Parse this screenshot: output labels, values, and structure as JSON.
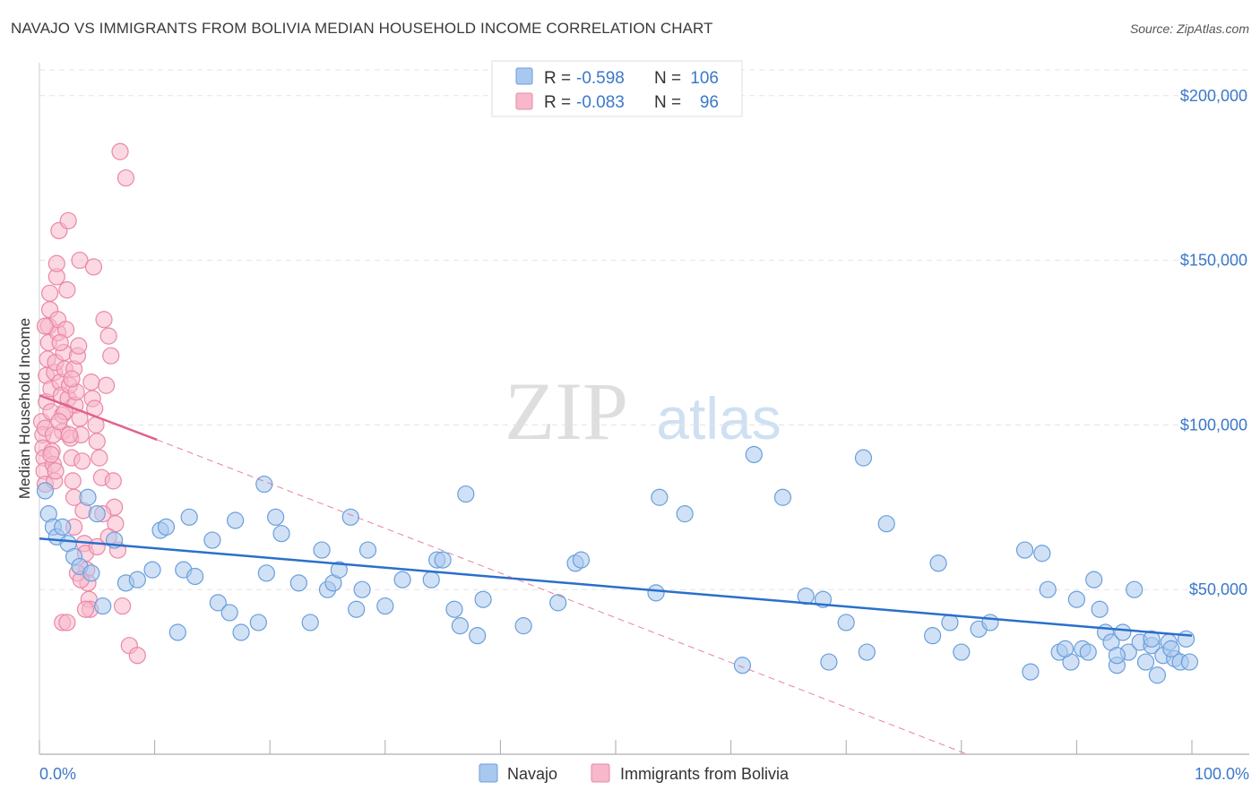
{
  "title": "NAVAJO VS IMMIGRANTS FROM BOLIVIA MEDIAN HOUSEHOLD INCOME CORRELATION CHART",
  "source": "Source: ZipAtlas.com",
  "watermark": {
    "zip": "ZIP",
    "atlas": "atlas"
  },
  "colors": {
    "navajo_fill": "#a9c8ee",
    "navajo_stroke": "#6a9edb",
    "navajo_line": "#2a6fcc",
    "bolivia_fill": "#f7b8cb",
    "bolivia_stroke": "#ea87a6",
    "bolivia_line": "#e0628a",
    "tick_text": "#3b78c9",
    "grid": "#e3e3e3"
  },
  "legend": {
    "rows": [
      {
        "r_label": "R =",
        "r_value": "-0.598",
        "n_label": "N =",
        "n_value": "106"
      },
      {
        "r_label": "R =",
        "r_value": "-0.083",
        "n_label": "N =",
        "n_value": "96"
      }
    ]
  },
  "chart_data": {
    "type": "scatter",
    "title": "NAVAJO VS IMMIGRANTS FROM BOLIVIA MEDIAN HOUSEHOLD INCOME CORRELATION CHART",
    "xlabel": "",
    "ylabel": "Median Household Income",
    "xlim": [
      0,
      100
    ],
    "ylim": [
      0,
      210000
    ],
    "x_tick_labels": [
      "0.0%",
      "100.0%"
    ],
    "y_ticks": [
      50000,
      100000,
      150000,
      200000
    ],
    "y_tick_labels": [
      "$50,000",
      "$100,000",
      "$150,000",
      "$200,000"
    ],
    "legend_position": "top-center",
    "series": [
      {
        "name": "Navajo",
        "r": -0.598,
        "n": 106,
        "trend": {
          "x": [
            0,
            100
          ],
          "y": [
            65500,
            36000
          ]
        },
        "points": [
          [
            0.5,
            80000
          ],
          [
            0.8,
            73000
          ],
          [
            1.2,
            69000
          ],
          [
            1.5,
            66000
          ],
          [
            2.0,
            69000
          ],
          [
            2.5,
            64000
          ],
          [
            3.0,
            60000
          ],
          [
            3.5,
            57000
          ],
          [
            4.2,
            78000
          ],
          [
            4.5,
            55000
          ],
          [
            5.0,
            73000
          ],
          [
            5.5,
            45000
          ],
          [
            6.5,
            65000
          ],
          [
            7.5,
            52000
          ],
          [
            8.5,
            53000
          ],
          [
            9.8,
            56000
          ],
          [
            10.5,
            68000
          ],
          [
            11.0,
            69000
          ],
          [
            12.0,
            37000
          ],
          [
            12.5,
            56000
          ],
          [
            13.0,
            72000
          ],
          [
            13.5,
            54000
          ],
          [
            15.0,
            65000
          ],
          [
            15.5,
            46000
          ],
          [
            16.5,
            43000
          ],
          [
            17.0,
            71000
          ],
          [
            17.5,
            37000
          ],
          [
            19.0,
            40000
          ],
          [
            19.5,
            82000
          ],
          [
            19.7,
            55000
          ],
          [
            20.5,
            72000
          ],
          [
            21.0,
            67000
          ],
          [
            22.5,
            52000
          ],
          [
            23.5,
            40000
          ],
          [
            24.5,
            62000
          ],
          [
            25.0,
            50000
          ],
          [
            25.5,
            52000
          ],
          [
            26.0,
            56000
          ],
          [
            27.0,
            72000
          ],
          [
            27.5,
            44000
          ],
          [
            28.0,
            50000
          ],
          [
            28.5,
            62000
          ],
          [
            30.0,
            45000
          ],
          [
            31.5,
            53000
          ],
          [
            34.0,
            53000
          ],
          [
            34.5,
            59000
          ],
          [
            35.0,
            59000
          ],
          [
            36.0,
            44000
          ],
          [
            36.5,
            39000
          ],
          [
            37.0,
            79000
          ],
          [
            38.0,
            36000
          ],
          [
            38.5,
            47000
          ],
          [
            42.0,
            39000
          ],
          [
            45.0,
            46000
          ],
          [
            46.5,
            58000
          ],
          [
            47.0,
            59000
          ],
          [
            53.5,
            49000
          ],
          [
            53.8,
            78000
          ],
          [
            56.0,
            73000
          ],
          [
            61.0,
            27000
          ],
          [
            62.0,
            91000
          ],
          [
            64.5,
            78000
          ],
          [
            66.5,
            48000
          ],
          [
            68.0,
            47000
          ],
          [
            68.5,
            28000
          ],
          [
            70.0,
            40000
          ],
          [
            71.5,
            90000
          ],
          [
            71.8,
            31000
          ],
          [
            73.5,
            70000
          ],
          [
            77.5,
            36000
          ],
          [
            78.0,
            58000
          ],
          [
            79.0,
            40000
          ],
          [
            80.0,
            31000
          ],
          [
            81.5,
            38000
          ],
          [
            82.5,
            40000
          ],
          [
            85.5,
            62000
          ],
          [
            86.0,
            25000
          ],
          [
            87.0,
            61000
          ],
          [
            87.5,
            50000
          ],
          [
            88.5,
            31000
          ],
          [
            89.5,
            28000
          ],
          [
            90.0,
            47000
          ],
          [
            90.5,
            32000
          ],
          [
            91.0,
            31000
          ],
          [
            91.5,
            53000
          ],
          [
            92.0,
            44000
          ],
          [
            92.5,
            37000
          ],
          [
            93.0,
            34000
          ],
          [
            93.5,
            27000
          ],
          [
            94.0,
            37000
          ],
          [
            94.5,
            31000
          ],
          [
            95.0,
            50000
          ],
          [
            95.5,
            34000
          ],
          [
            96.0,
            28000
          ],
          [
            96.5,
            33000
          ],
          [
            97.0,
            24000
          ],
          [
            97.5,
            30000
          ],
          [
            98.0,
            34000
          ],
          [
            98.5,
            29000
          ],
          [
            99.0,
            28000
          ],
          [
            99.5,
            35000
          ],
          [
            99.8,
            28000
          ],
          [
            93.5,
            30000
          ],
          [
            89.0,
            32000
          ],
          [
            96.5,
            35000
          ],
          [
            98.2,
            32000
          ]
        ]
      },
      {
        "name": "Immigrants from Bolivia",
        "r": -0.083,
        "n": 96,
        "trend": {
          "x": [
            0,
            10.2
          ],
          "y": [
            109000,
            95500
          ]
        },
        "trend_extension": {
          "x": [
            10.2,
            80.5
          ],
          "y": [
            95500,
            0
          ]
        },
        "points": [
          [
            0.2,
            101000
          ],
          [
            0.3,
            97000
          ],
          [
            0.3,
            93000
          ],
          [
            0.4,
            90000
          ],
          [
            0.4,
            86000
          ],
          [
            0.5,
            82000
          ],
          [
            0.5,
            99000
          ],
          [
            0.6,
            107000
          ],
          [
            0.6,
            115000
          ],
          [
            0.7,
            120000
          ],
          [
            0.8,
            125000
          ],
          [
            0.8,
            130000
          ],
          [
            0.9,
            135000
          ],
          [
            0.9,
            140000
          ],
          [
            1.0,
            111000
          ],
          [
            1.0,
            104000
          ],
          [
            1.1,
            92000
          ],
          [
            1.2,
            88000
          ],
          [
            1.3,
            83000
          ],
          [
            1.3,
            116000
          ],
          [
            1.4,
            119000
          ],
          [
            1.5,
            145000
          ],
          [
            1.5,
            149000
          ],
          [
            1.6,
            128000
          ],
          [
            1.6,
            132000
          ],
          [
            1.7,
            159000
          ],
          [
            1.8,
            113000
          ],
          [
            1.9,
            109000
          ],
          [
            2.0,
            103000
          ],
          [
            2.0,
            98000
          ],
          [
            2.1,
            122000
          ],
          [
            2.2,
            117000
          ],
          [
            2.3,
            129000
          ],
          [
            2.4,
            141000
          ],
          [
            2.5,
            162000
          ],
          [
            2.5,
            108000
          ],
          [
            2.6,
            112000
          ],
          [
            2.7,
            96000
          ],
          [
            2.8,
            90000
          ],
          [
            2.9,
            83000
          ],
          [
            3.0,
            78000
          ],
          [
            3.0,
            117000
          ],
          [
            3.1,
            106000
          ],
          [
            3.2,
            110000
          ],
          [
            3.3,
            121000
          ],
          [
            3.4,
            124000
          ],
          [
            3.5,
            102000
          ],
          [
            3.5,
            150000
          ],
          [
            3.6,
            97000
          ],
          [
            3.7,
            89000
          ],
          [
            3.8,
            74000
          ],
          [
            3.9,
            64000
          ],
          [
            4.0,
            61000
          ],
          [
            4.1,
            56000
          ],
          [
            4.2,
            52000
          ],
          [
            4.3,
            47000
          ],
          [
            4.4,
            44000
          ],
          [
            4.5,
            113000
          ],
          [
            4.6,
            108000
          ],
          [
            4.7,
            148000
          ],
          [
            4.8,
            105000
          ],
          [
            4.9,
            100000
          ],
          [
            5.0,
            95000
          ],
          [
            5.2,
            90000
          ],
          [
            5.4,
            84000
          ],
          [
            5.6,
            132000
          ],
          [
            5.8,
            112000
          ],
          [
            6.0,
            127000
          ],
          [
            6.2,
            121000
          ],
          [
            6.4,
            83000
          ],
          [
            6.5,
            75000
          ],
          [
            6.6,
            70000
          ],
          [
            6.8,
            62000
          ],
          [
            7.0,
            183000
          ],
          [
            7.2,
            45000
          ],
          [
            7.5,
            175000
          ],
          [
            7.8,
            33000
          ],
          [
            8.5,
            30000
          ],
          [
            2.0,
            40000
          ],
          [
            2.4,
            40000
          ],
          [
            3.3,
            55000
          ],
          [
            3.6,
            53000
          ],
          [
            1.2,
            97000
          ],
          [
            1.8,
            125000
          ],
          [
            2.8,
            114000
          ],
          [
            0.5,
            130000
          ],
          [
            1.0,
            91000
          ],
          [
            1.4,
            86000
          ],
          [
            2.2,
            104000
          ],
          [
            3.0,
            69000
          ],
          [
            4.0,
            44000
          ],
          [
            5.0,
            63000
          ],
          [
            5.5,
            73000
          ],
          [
            6.0,
            66000
          ],
          [
            2.6,
            97000
          ],
          [
            1.7,
            101000
          ]
        ]
      }
    ]
  }
}
